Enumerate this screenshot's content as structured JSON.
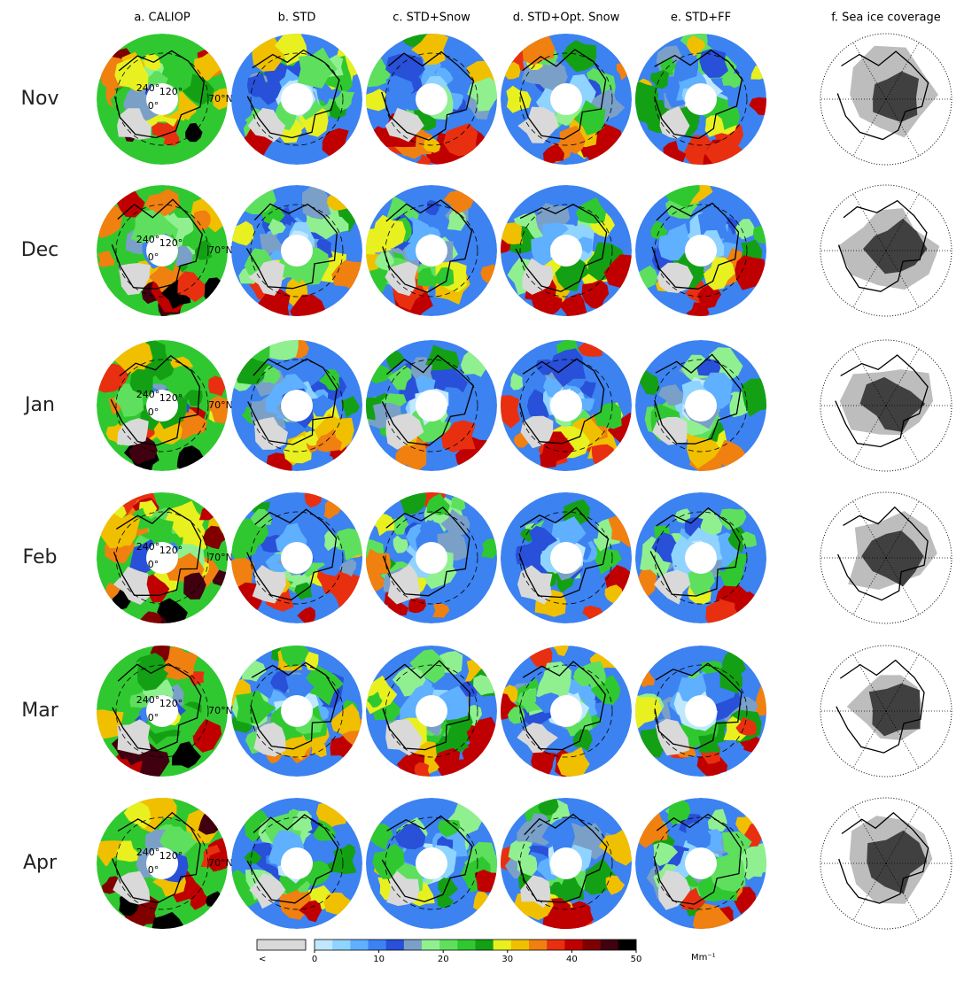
{
  "columns": [
    "a. CALIOP",
    "b. STD",
    "c. STD+Snow",
    "d. STD+Opt. Snow",
    "e. STD+FF",
    "f. Sea ice coverage"
  ],
  "rows": [
    "Nov",
    "Dec",
    "Jan",
    "Feb",
    "Mar",
    "Apr"
  ],
  "map_labels": [
    "240°",
    "120°",
    "0°",
    "70°N"
  ],
  "colorbar": {
    "below_label": "<",
    "unit": "Mm⁻¹",
    "lim": [
      0,
      50
    ],
    "ticks": [
      0,
      10,
      20,
      30,
      40,
      50
    ],
    "below_color": "#d9d9d9",
    "colors": [
      "#bfe8ff",
      "#8fd3ff",
      "#5fb0ff",
      "#3c82f0",
      "#2850d8",
      "#7aa0c8",
      "#90f090",
      "#5ee05e",
      "#30c830",
      "#14a014",
      "#e8f020",
      "#f0c000",
      "#f08010",
      "#e83010",
      "#c00000",
      "#800000",
      "#400010",
      "#000000"
    ]
  }
}
